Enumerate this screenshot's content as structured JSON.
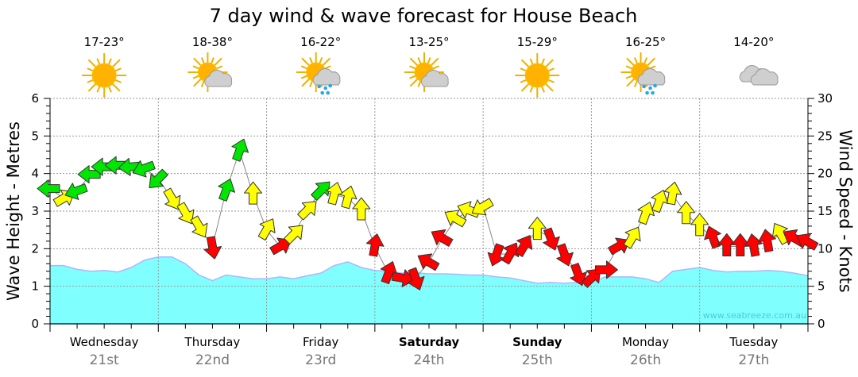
{
  "chart_data": {
    "type": "area",
    "title": "7 day wind & wave forecast for House Beach",
    "ylabel_left": "Wave Height - Metres",
    "ylabel_right": "Wind Speed - Knots",
    "ylim_left": [
      0,
      6
    ],
    "ylim_right": [
      0,
      30
    ],
    "yticks_left": [
      "0",
      "1",
      "2",
      "3",
      "4",
      "5",
      "6"
    ],
    "yticks_right": [
      "0",
      "5",
      "10",
      "15",
      "20",
      "25",
      "30"
    ],
    "grid": true,
    "watermark": "www.seabreeze.com.au",
    "days": [
      {
        "name": "Wednesday",
        "date": "21st",
        "temp": "17-23°",
        "weather": "sunny",
        "bold": false
      },
      {
        "name": "Thursday",
        "date": "22nd",
        "temp": "18-38°",
        "weather": "partly-cloudy",
        "bold": false
      },
      {
        "name": "Friday",
        "date": "23rd",
        "temp": "16-22°",
        "weather": "showers",
        "bold": false
      },
      {
        "name": "Saturday",
        "date": "24th",
        "temp": "13-25°",
        "weather": "partly-cloudy",
        "bold": true
      },
      {
        "name": "Sunday",
        "date": "25th",
        "temp": "15-29°",
        "weather": "sunny",
        "bold": true
      },
      {
        "name": "Monday",
        "date": "26th",
        "temp": "16-25°",
        "weather": "showers",
        "bold": false
      },
      {
        "name": "Tuesday",
        "date": "27th",
        "temp": "14-20°",
        "weather": "cloudy",
        "bold": false
      }
    ],
    "colors": {
      "wave": "#80ffff",
      "wave_line": "#aab8ff",
      "green": "#00e600",
      "yellow": "#ffff00",
      "red": "#ff0000"
    },
    "wave_series": {
      "name": "Wave Height (m)",
      "hours": [
        0,
        3,
        6,
        9,
        12,
        15,
        18,
        21,
        24,
        27,
        30,
        33,
        36,
        39,
        42,
        45,
        48,
        51,
        54,
        57,
        60,
        63,
        66,
        69,
        72,
        75,
        78,
        81,
        84,
        87,
        90,
        93,
        96,
        99,
        102,
        105,
        108,
        111,
        114,
        117,
        120,
        123,
        126,
        129,
        132,
        135,
        138,
        141,
        144,
        147,
        150,
        153,
        156,
        159,
        162,
        165,
        168
      ],
      "values": [
        1.55,
        1.55,
        1.45,
        1.4,
        1.42,
        1.38,
        1.5,
        1.7,
        1.78,
        1.78,
        1.6,
        1.3,
        1.15,
        1.3,
        1.25,
        1.2,
        1.2,
        1.25,
        1.2,
        1.28,
        1.35,
        1.55,
        1.65,
        1.5,
        1.42,
        1.4,
        1.35,
        1.36,
        1.33,
        1.33,
        1.32,
        1.3,
        1.3,
        1.25,
        1.22,
        1.15,
        1.08,
        1.1,
        1.08,
        1.1,
        1.1,
        1.25,
        1.25,
        1.25,
        1.2,
        1.1,
        1.4,
        1.45,
        1.5,
        1.42,
        1.38,
        1.4,
        1.4,
        1.42,
        1.4,
        1.35,
        1.28
      ]
    },
    "wind_series": {
      "name": "Wind (knots, arrow bearing deg, colour)",
      "points": [
        [
          0,
          18,
          270,
          "green"
        ],
        [
          3,
          16.7,
          60,
          "yellow"
        ],
        [
          6,
          17.7,
          250,
          "green"
        ],
        [
          9,
          19.9,
          270,
          "green"
        ],
        [
          12,
          20.9,
          270,
          "green"
        ],
        [
          15,
          21.1,
          270,
          "green"
        ],
        [
          18,
          20.9,
          265,
          "green"
        ],
        [
          21,
          20.7,
          250,
          "green"
        ],
        [
          24,
          19.3,
          225,
          "green"
        ],
        [
          27,
          16.7,
          150,
          "yellow"
        ],
        [
          30,
          14.8,
          150,
          "yellow"
        ],
        [
          33,
          13,
          150,
          "yellow"
        ],
        [
          36,
          10.3,
          170,
          "red"
        ],
        [
          39,
          17.7,
          20,
          "green"
        ],
        [
          42,
          23,
          20,
          "green"
        ],
        [
          45,
          17.2,
          0,
          "yellow"
        ],
        [
          48,
          12.5,
          30,
          "yellow"
        ],
        [
          51,
          10.3,
          60,
          "red"
        ],
        [
          54,
          11.9,
          45,
          "yellow"
        ],
        [
          57,
          15.1,
          45,
          "yellow"
        ],
        [
          60,
          17.7,
          45,
          "green"
        ],
        [
          63,
          17.2,
          15,
          "yellow"
        ],
        [
          66,
          16.7,
          15,
          "yellow"
        ],
        [
          69,
          15.1,
          0,
          "yellow"
        ],
        [
          72,
          10.3,
          10,
          "red"
        ],
        [
          75,
          6.7,
          20,
          "red"
        ],
        [
          78,
          6.1,
          100,
          "red"
        ],
        [
          81,
          6.1,
          160,
          "red"
        ],
        [
          84,
          8.2,
          300,
          "red"
        ],
        [
          87,
          11.4,
          300,
          "red"
        ],
        [
          90,
          14,
          300,
          "yellow"
        ],
        [
          93,
          15.1,
          290,
          "yellow"
        ],
        [
          96,
          15.6,
          240,
          "yellow"
        ],
        [
          99,
          9.3,
          200,
          "red"
        ],
        [
          102,
          9.3,
          30,
          "red"
        ],
        [
          105,
          10.3,
          30,
          "red"
        ],
        [
          108,
          12.5,
          0,
          "yellow"
        ],
        [
          111,
          11.4,
          160,
          "red"
        ],
        [
          114,
          9.3,
          160,
          "red"
        ],
        [
          117,
          6.7,
          160,
          "red"
        ],
        [
          120,
          6.1,
          45,
          "red"
        ],
        [
          123,
          7.2,
          90,
          "red"
        ],
        [
          126,
          10.3,
          60,
          "red"
        ],
        [
          129,
          11.4,
          30,
          "yellow"
        ],
        [
          132,
          14.6,
          20,
          "yellow"
        ],
        [
          135,
          16.2,
          20,
          "yellow"
        ],
        [
          138,
          17.2,
          10,
          "yellow"
        ],
        [
          141,
          14.6,
          0,
          "yellow"
        ],
        [
          144,
          13,
          0,
          "yellow"
        ],
        [
          147,
          11.4,
          340,
          "red"
        ],
        [
          150,
          10.3,
          0,
          "red"
        ],
        [
          153,
          10.3,
          0,
          "red"
        ],
        [
          156,
          10.3,
          350,
          "red"
        ],
        [
          159,
          10.9,
          350,
          "red"
        ],
        [
          162,
          11.9,
          330,
          "yellow"
        ],
        [
          165,
          11.4,
          300,
          "red"
        ],
        [
          168,
          10.9,
          300,
          "red"
        ]
      ]
    }
  }
}
